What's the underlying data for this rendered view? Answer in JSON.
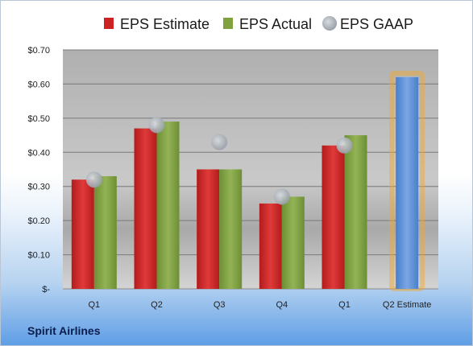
{
  "company": "Spirit Airlines",
  "chart_data": {
    "type": "bar",
    "categories": [
      "Q1",
      "Q2",
      "Q3",
      "Q4",
      "Q1",
      "Q2 Estimate"
    ],
    "series": [
      {
        "name": "EPS Estimate",
        "color": "#cc2222",
        "values": [
          0.32,
          0.47,
          0.35,
          0.25,
          0.42,
          null
        ]
      },
      {
        "name": "EPS Actual",
        "color": "#7fa23f",
        "values": [
          0.33,
          0.49,
          0.35,
          0.27,
          0.45,
          null
        ]
      },
      {
        "name": "EPS GAAP",
        "color": "#aeb4bb",
        "marker": "circle",
        "values": [
          0.32,
          0.48,
          0.43,
          0.27,
          0.42,
          null
        ]
      },
      {
        "name": "Q2 Estimate",
        "color": "#5b8fd6",
        "highlight": "#f5a623",
        "values": [
          null,
          null,
          null,
          null,
          null,
          0.62
        ]
      }
    ],
    "ylim": [
      0,
      0.7
    ],
    "yticks": [
      {
        "value": 0.7,
        "label": "$0.70"
      },
      {
        "value": 0.6,
        "label": "$0.60"
      },
      {
        "value": 0.5,
        "label": "$0.50"
      },
      {
        "value": 0.4,
        "label": "$0.40"
      },
      {
        "value": 0.3,
        "label": "$0.30"
      },
      {
        "value": 0.2,
        "label": "$0.20"
      },
      {
        "value": 0.1,
        "label": "$0.10"
      },
      {
        "value": 0,
        "label": "$-"
      }
    ],
    "grid": true,
    "legend": "top"
  }
}
